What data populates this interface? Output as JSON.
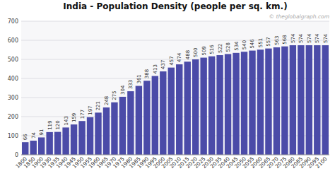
{
  "chart_data": {
    "type": "bar",
    "title": "India - Population Density (people per sq. km.)",
    "annotations": [
      "© theglobalgraph.com"
    ],
    "categories": [
      "1800",
      "1850",
      "1900",
      "1930",
      "1935",
      "1940",
      "1945",
      "1950",
      "1955",
      "1960",
      "1965",
      "1970",
      "1975",
      "1980",
      "1985",
      "1990",
      "1995",
      "2000",
      "2005",
      "2010",
      "2015",
      "2020",
      "2025",
      "2030",
      "2035",
      "2040",
      "2045",
      "2050",
      "2055",
      "2060",
      "2065",
      "2070",
      "2075",
      "2080",
      "2085",
      "2090",
      "2095",
      "2100"
    ],
    "values": [
      66,
      74,
      91,
      119,
      120,
      143,
      159,
      177,
      197,
      221,
      248,
      275,
      304,
      333,
      361,
      388,
      413,
      437,
      457,
      474,
      488,
      500,
      509,
      516,
      522,
      528,
      534,
      540,
      546,
      551,
      557,
      563,
      568,
      574,
      574,
      574,
      574,
      574
    ],
    "color": "#4b4ba8",
    "ylim": [
      0,
      700
    ],
    "yticks": [
      0,
      100,
      200,
      300,
      400,
      500,
      600,
      700
    ],
    "grid": true,
    "data_labels": true
  }
}
